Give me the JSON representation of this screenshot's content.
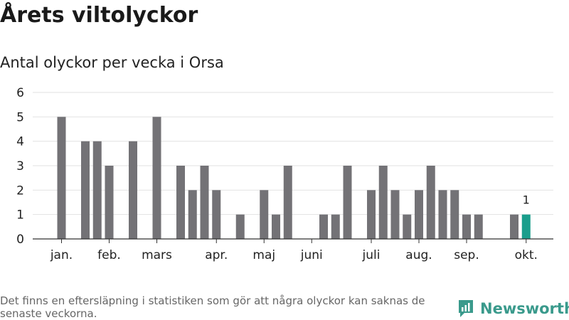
{
  "header": {
    "title": "Årets viltolyckor",
    "subtitle": "Antal olyckor per vecka i Orsa"
  },
  "footer": {
    "note": "Det finns en eftersläpning i statistiken som gör att några olyckor kan saknas de senaste veckorna.",
    "brand": "Newsworthy"
  },
  "colors": {
    "bar": "#737276",
    "highlight": "#1a9e8c",
    "grid": "#e2e2e2",
    "axis": "#333333",
    "brand": "#3a9a8c"
  },
  "chart_data": {
    "type": "bar",
    "title": "Antal olyckor per vecka i Orsa",
    "xlabel": "",
    "ylabel": "",
    "ylim": [
      0,
      6
    ],
    "yticks": [
      0,
      1,
      2,
      3,
      4,
      5,
      6
    ],
    "grid": true,
    "weeks": [
      1,
      2,
      3,
      4,
      5,
      6,
      7,
      8,
      9,
      10,
      11,
      12,
      13,
      14,
      15,
      16,
      17,
      18,
      19,
      20,
      21,
      22,
      23,
      24,
      25,
      26,
      27,
      28,
      29,
      30,
      31,
      32,
      33,
      34,
      35,
      36,
      37,
      38,
      39,
      40,
      41
    ],
    "values": [
      5,
      0,
      4,
      4,
      3,
      0,
      4,
      0,
      5,
      0,
      3,
      2,
      3,
      2,
      0,
      1,
      0,
      2,
      1,
      3,
      0,
      0,
      1,
      1,
      3,
      0,
      2,
      3,
      2,
      1,
      2,
      3,
      2,
      2,
      1,
      1,
      0,
      0,
      1,
      1,
      null
    ],
    "highlight_week": 40,
    "highlight_label": "1",
    "month_labels": [
      {
        "label": "jan.",
        "week": 1
      },
      {
        "label": "feb.",
        "week": 5
      },
      {
        "label": "mars",
        "week": 9
      },
      {
        "label": "apr.",
        "week": 14
      },
      {
        "label": "maj",
        "week": 18
      },
      {
        "label": "juni",
        "week": 22
      },
      {
        "label": "juli",
        "week": 27
      },
      {
        "label": "aug.",
        "week": 31
      },
      {
        "label": "sep.",
        "week": 35
      },
      {
        "label": "okt.",
        "week": 40
      }
    ]
  }
}
